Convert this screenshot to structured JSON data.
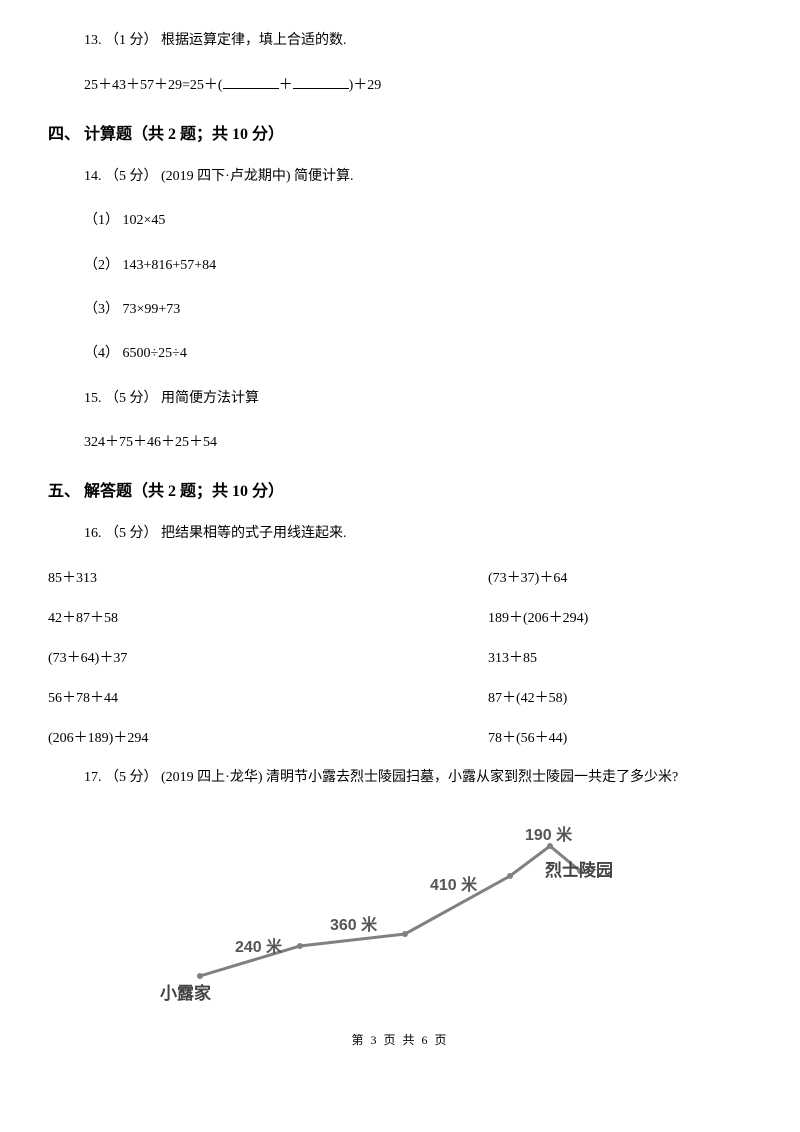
{
  "q13": {
    "header": "13.  （1 分）  根据运算定律，填上合适的数.",
    "expr_a": "25＋43＋57＋29=25＋(",
    "expr_b": "＋",
    "expr_c": ")＋29"
  },
  "section4": "四、  计算题（共 2 题；共 10 分）",
  "q14": {
    "header": "14.  （5 分）  (2019 四下·卢龙期中)  简便计算.",
    "p1": "（1）  102×45",
    "p2": "（2）  143+816+57+84",
    "p3": "（3）  73×99+73",
    "p4": "（4）  6500÷25÷4"
  },
  "q15": {
    "header": "15.  （5 分）  用简便方法计算",
    "expr": "324＋75＋46＋25＋54"
  },
  "section5": "五、  解答题（共 2 题；共 10 分）",
  "q16": {
    "header": "16.  （5 分）  把结果相等的式子用线连起来.",
    "rows": [
      {
        "l": "85＋313",
        "r": "(73＋37)＋64"
      },
      {
        "l": "42＋87＋58",
        "r": "189＋(206＋294)"
      },
      {
        "l": "(73＋64)＋37",
        "r": "313＋85"
      },
      {
        "l": "56＋78＋44",
        "r": "87＋(42＋58)"
      },
      {
        "l": "(206＋189)＋294",
        "r": "78＋(56＋44)"
      }
    ]
  },
  "q17": {
    "header": "17.  （5 分）  (2019 四上·龙华)  清明节小露去烈士陵园扫墓，小露从家到烈士陵园一共走了多少米?",
    "labels": {
      "d1": "240 米",
      "d2": "360 米",
      "d3": "410 米",
      "d4": "190 米",
      "start": "小露家",
      "end": "烈士陵园"
    },
    "line_color": "#808080",
    "label_color": "#555555"
  },
  "footer": "第 3 页 共 6 页"
}
